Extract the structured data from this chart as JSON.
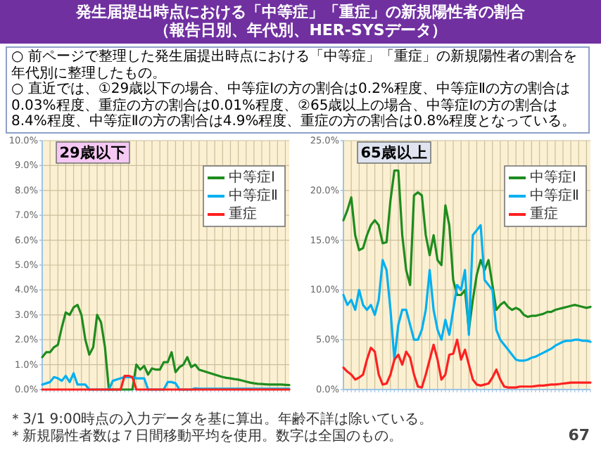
{
  "chart_data": [
    {
      "type": "other",
      "title": "発生届提出時点における「中等症」「重症」の新規陽性者の割合",
      "subtitle": "（報告日別、年代別、HER-SYSデータ）",
      "annotations": [
        "○ 前ページで整理した発生届提出時点における「中等症」「重症」の新規陽性者の割合を年代別に整理したもの。",
        "○ 直近では、①29歳以下の場合、中等症Ⅰの方の割合は0.2%程度、中等症Ⅱの方の割合は0.03%程度、重症の方の割合は0.01%程度、②65歳以上の場合、中等症Ⅰの方の割合は8.4%程度、中等症Ⅱの方の割合は4.9%程度、重症の方の割合は0.8%程度となっている。"
      ]
    },
    {
      "type": "line",
      "title": "29歳以下",
      "categories": [
        null,
        null,
        null,
        null,
        null,
        null,
        null,
        null,
        null,
        null,
        null,
        null,
        null,
        null,
        null,
        null,
        null,
        null,
        null,
        null,
        null,
        null,
        null,
        null,
        null,
        null,
        null,
        null,
        null,
        null,
        null,
        null,
        null,
        null,
        null,
        null,
        null,
        null,
        null,
        null,
        null,
        null,
        null,
        null,
        null,
        null,
        null,
        null,
        null,
        null,
        null,
        null,
        null,
        null,
        null,
        null,
        null,
        null,
        null,
        null,
        null,
        null,
        null,
        null
      ],
      "ylim": [
        0,
        10
      ],
      "yticks": [
        {
          "value": 0,
          "label": "0.0%"
        },
        {
          "value": 1,
          "label": "1.0%"
        },
        {
          "value": 2,
          "label": "2.0%"
        },
        {
          "value": 3,
          "label": "3.0%"
        },
        {
          "value": 4,
          "label": "4.0%"
        },
        {
          "value": 5,
          "label": "5.0%"
        },
        {
          "value": 6,
          "label": "6.0%"
        },
        {
          "value": 7,
          "label": "7.0%"
        },
        {
          "value": 8,
          "label": "8.0%"
        },
        {
          "value": 9,
          "label": "9.0%"
        },
        {
          "value": 10,
          "label": "10.0%"
        }
      ],
      "grid": true,
      "legend": "top right",
      "line_style": "solid",
      "series": [
        {
          "name": "中等症Ⅰ",
          "color": "#1e8c1e",
          "values": [
            1.3,
            1.5,
            1.5,
            1.7,
            1.8,
            2.5,
            3.1,
            3.0,
            3.3,
            3.4,
            3.0,
            2.0,
            1.4,
            1.7,
            3.0,
            2.7,
            1.7,
            0,
            0,
            0,
            0,
            0,
            0,
            0,
            1.0,
            0.8,
            0.95,
            0.6,
            0.85,
            0.8,
            0.8,
            1.1,
            1.1,
            1.5,
            0.7,
            0.9,
            1.0,
            1.3,
            0.9,
            1.0,
            0.8,
            0.75,
            0.7,
            0.65,
            0.6,
            0.55,
            0.5,
            0.47,
            0.45,
            0.42,
            0.4,
            0.36,
            0.32,
            0.28,
            0.25,
            0.23,
            0.22,
            0.21,
            0.2,
            0.2,
            0.2,
            0.2,
            0.19,
            0.18
          ]
        },
        {
          "name": "中等症Ⅱ",
          "color": "#00b0f0",
          "values": [
            0.2,
            0.25,
            0.3,
            0.5,
            0.45,
            0.35,
            0.55,
            0.3,
            0.65,
            0.2,
            0.2,
            0.2,
            0,
            0,
            0,
            0,
            0,
            0,
            0.35,
            0.4,
            0.45,
            0.5,
            0.5,
            0.5,
            0.45,
            0.45,
            0.45,
            0,
            0,
            0,
            0,
            0,
            0.3,
            0.3,
            0.25,
            0,
            0,
            0,
            0,
            0.05,
            0.03,
            0.03,
            0.03,
            0.03,
            0.03,
            0.03,
            0.03,
            0.03,
            0.03,
            0.03,
            0.03,
            0.03,
            0.03,
            0.03,
            0.03,
            0.03,
            0.03,
            0.03,
            0.03,
            0.03,
            0.03,
            0.03,
            0.03,
            0.03
          ]
        },
        {
          "name": "重症",
          "color": "#ff2020",
          "values": [
            0,
            0,
            0,
            0,
            0,
            0,
            0,
            0,
            0,
            0,
            0,
            0,
            0,
            0,
            0,
            0,
            0,
            0,
            0,
            0,
            0,
            0.55,
            0.55,
            0.5,
            0,
            0,
            0,
            0,
            0,
            0,
            0,
            0,
            0,
            0,
            0,
            0,
            0,
            0,
            0,
            0,
            0,
            0,
            0,
            0,
            0,
            0,
            0,
            0,
            0,
            0,
            0,
            0,
            0,
            0,
            0,
            0,
            0,
            0,
            0,
            0,
            0,
            0,
            0,
            0
          ]
        }
      ]
    },
    {
      "type": "line",
      "title": "65歳以上",
      "categories": [
        null,
        null,
        null,
        null,
        null,
        null,
        null,
        null,
        null,
        null,
        null,
        null,
        null,
        null,
        null,
        null,
        null,
        null,
        null,
        null,
        null,
        null,
        null,
        null,
        null,
        null,
        null,
        null,
        null,
        null,
        null,
        null,
        null,
        null,
        null,
        null,
        null,
        null,
        null,
        null,
        null,
        null,
        null,
        null,
        null,
        null,
        null,
        null,
        null,
        null,
        null,
        null,
        null,
        null,
        null,
        null,
        null,
        null,
        null,
        null,
        null,
        null,
        null,
        null
      ],
      "ylim": [
        0,
        25
      ],
      "yticks": [
        {
          "value": 0,
          "label": "0.0%"
        },
        {
          "value": 5,
          "label": "5.0%"
        },
        {
          "value": 10,
          "label": "10.0%"
        },
        {
          "value": 15,
          "label": "15.0%"
        },
        {
          "value": 20,
          "label": "20.0%"
        },
        {
          "value": 25,
          "label": "25.0%"
        }
      ],
      "grid": true,
      "legend": "top right",
      "line_style": "solid",
      "series": [
        {
          "name": "中等症Ⅰ",
          "color": "#1e8c1e",
          "values": [
            17,
            18,
            19.3,
            15.5,
            14,
            14.2,
            15.5,
            16.5,
            17,
            16.5,
            14.7,
            14.8,
            19,
            22,
            22,
            15.5,
            12,
            10.5,
            19.5,
            19.8,
            19.5,
            15.5,
            13.5,
            15.5,
            13,
            12.5,
            18.5,
            16.5,
            11,
            9.5,
            9.5,
            10,
            6,
            9,
            11.5,
            13,
            12,
            13,
            10.5,
            8,
            8.5,
            8.8,
            8.3,
            8,
            8.2,
            8,
            7.5,
            7.3,
            7.4,
            7.4,
            7.5,
            7.6,
            7.8,
            7.8,
            8.0,
            8.1,
            8.2,
            8.3,
            8.4,
            8.5,
            8.4,
            8.3,
            8.2,
            8.3
          ]
        },
        {
          "name": "中等症Ⅱ",
          "color": "#00b0f0",
          "values": [
            9.5,
            8.5,
            9,
            8,
            10,
            8.5,
            8,
            8.5,
            7.5,
            9,
            13,
            12,
            8,
            3,
            6.5,
            8,
            8,
            6.5,
            5,
            5,
            6,
            8,
            12,
            8,
            6,
            5,
            7,
            5.5,
            8,
            10.5,
            10,
            12,
            5.5,
            15.5,
            16,
            16.5,
            11,
            10.5,
            10,
            6,
            5,
            4.5,
            4,
            3.5,
            3,
            2.9,
            2.9,
            3,
            3.2,
            3.3,
            3.5,
            3.7,
            3.9,
            4.1,
            4.4,
            4.6,
            4.8,
            4.9,
            4.9,
            5.0,
            5.0,
            4.9,
            4.9,
            4.8
          ]
        },
        {
          "name": "重症",
          "color": "#ff2020",
          "values": [
            2.2,
            1.8,
            1.5,
            1.0,
            1.2,
            1.5,
            3.0,
            4.2,
            3.8,
            1.5,
            0.5,
            0.6,
            1.5,
            3.0,
            3.5,
            2.5,
            3.8,
            3.2,
            1.5,
            0.3,
            0.2,
            1.5,
            3.0,
            4.5,
            3.0,
            1.0,
            1.5,
            3.5,
            3.6,
            5.0,
            3.0,
            4.0,
            2.5,
            1.0,
            0.5,
            0.4,
            0.5,
            0.6,
            1.2,
            2.0,
            1.0,
            0.3,
            0.2,
            0.2,
            0.2,
            0.3,
            0.3,
            0.3,
            0.3,
            0.35,
            0.4,
            0.4,
            0.45,
            0.5,
            0.5,
            0.55,
            0.6,
            0.65,
            0.7,
            0.7,
            0.7,
            0.7,
            0.7,
            0.7
          ]
        }
      ]
    },
    {
      "type": "other",
      "annotations": [
        "＊3/1 9:00時点の入力データを基に算出。年齢不詳は除いている。",
        "＊新規陽性者数は７日間移動平均を使用。数字は全国のもの。",
        "67"
      ]
    }
  ]
}
